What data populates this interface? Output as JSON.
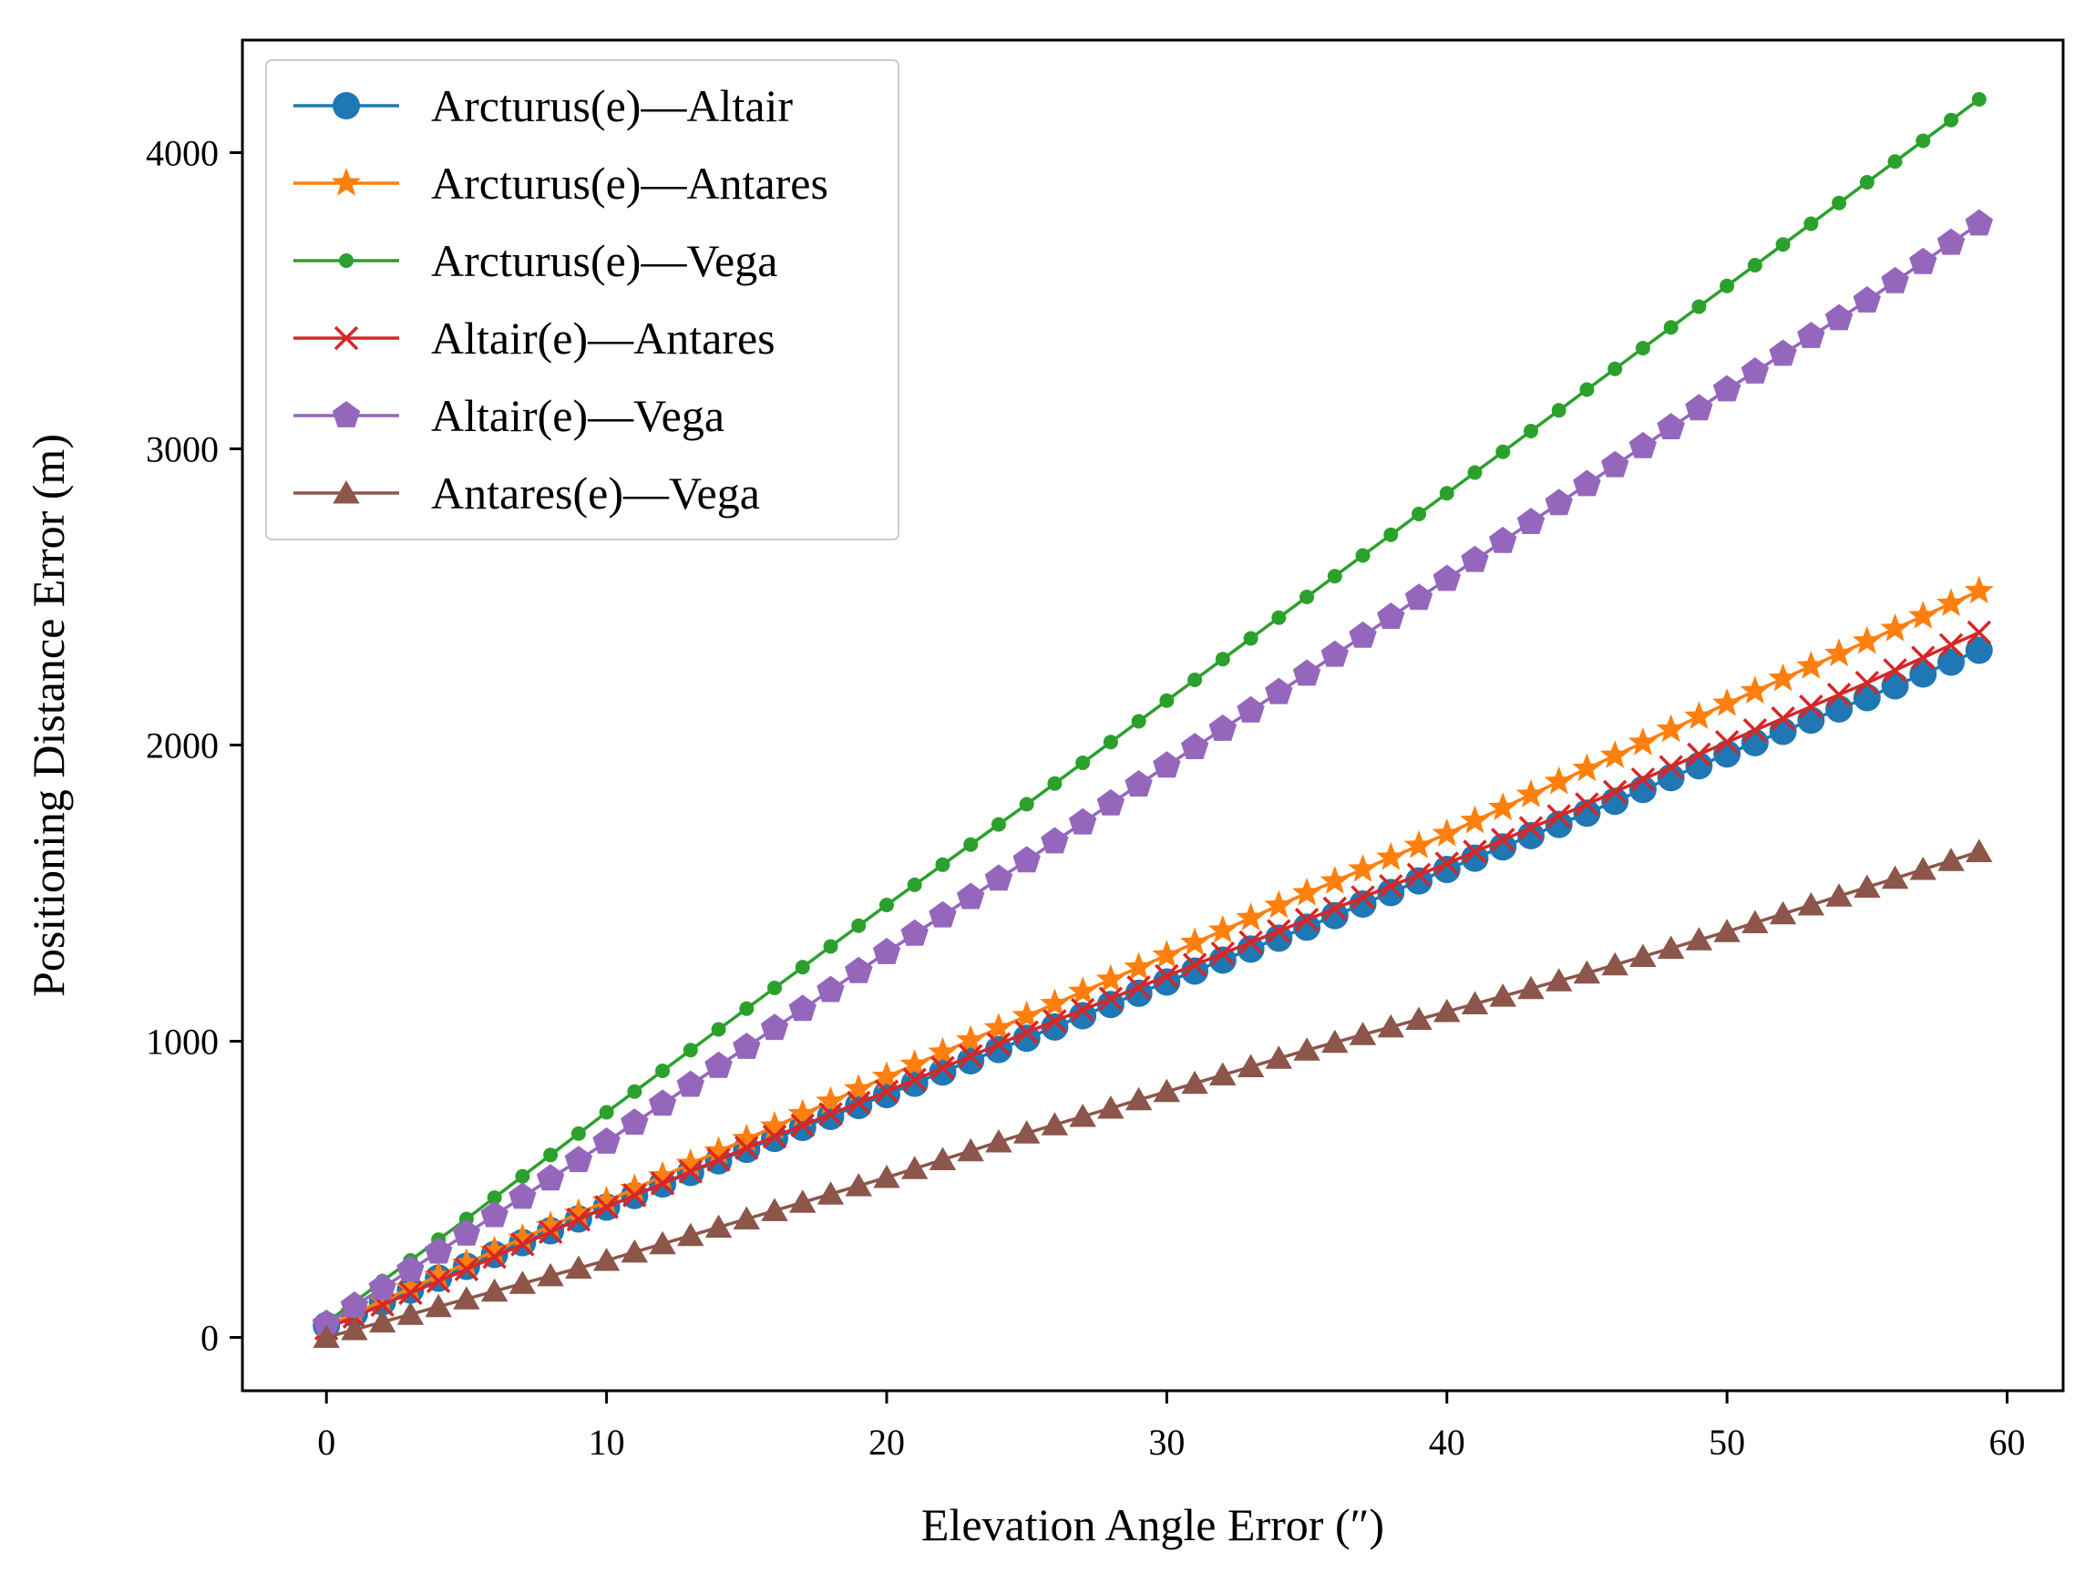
{
  "chart_data": {
    "type": "line",
    "title": "",
    "xlabel": "Elevation Angle Error (″)",
    "ylabel": "Positioning Distance Error (m)",
    "xlim": [
      -3,
      62
    ],
    "ylim": [
      -180,
      4380
    ],
    "xticks": [
      0,
      10,
      20,
      30,
      40,
      50,
      60
    ],
    "yticks": [
      0,
      1000,
      2000,
      3000,
      4000
    ],
    "xtick_labels": [
      "0",
      "10",
      "20",
      "30",
      "40",
      "50",
      "60"
    ],
    "ytick_labels": [
      "0",
      "1000",
      "2000",
      "3000",
      "4000"
    ],
    "grid": false,
    "legend_position": "upper-left",
    "x_range": {
      "start": 0,
      "end": 59,
      "step": 1
    },
    "series": [
      {
        "name": "Arcturus(e)—Altair",
        "color": "#1f77b4",
        "marker": "circle",
        "x": [
          0,
          5,
          10,
          15,
          20,
          25,
          30,
          35,
          40,
          45,
          50,
          55,
          59
        ],
        "y": [
          40,
          240,
          440,
          635,
          820,
          1010,
          1200,
          1385,
          1580,
          1770,
          1970,
          2160,
          2320
        ]
      },
      {
        "name": "Arcturus(e)—Antares",
        "color": "#ff7f0e",
        "marker": "star",
        "x": [
          0,
          5,
          10,
          15,
          20,
          25,
          30,
          35,
          40,
          45,
          50,
          55,
          59
        ],
        "y": [
          40,
          250,
          460,
          670,
          880,
          1085,
          1290,
          1500,
          1700,
          1920,
          2140,
          2350,
          2520
        ]
      },
      {
        "name": "Arcturus(e)—Vega",
        "color": "#2ca02c",
        "marker": "dot",
        "x": [
          0,
          5,
          10,
          15,
          20,
          25,
          30,
          35,
          40,
          45,
          50,
          55,
          59
        ],
        "y": [
          50,
          400,
          760,
          1110,
          1460,
          1800,
          2150,
          2500,
          2850,
          3200,
          3550,
          3900,
          4180
        ]
      },
      {
        "name": "Altair(e)—Antares",
        "color": "#d62728",
        "marker": "x",
        "x": [
          0,
          5,
          10,
          15,
          20,
          25,
          30,
          35,
          40,
          45,
          50,
          55,
          59
        ],
        "y": [
          30,
          230,
          440,
          640,
          830,
          1030,
          1220,
          1410,
          1600,
          1800,
          2010,
          2210,
          2380
        ]
      },
      {
        "name": "Altair(e)—Vega",
        "color": "#9467bd",
        "marker": "pentagon",
        "x": [
          0,
          5,
          10,
          15,
          20,
          25,
          30,
          35,
          40,
          45,
          50,
          55,
          59
        ],
        "y": [
          45,
          350,
          660,
          980,
          1300,
          1610,
          1930,
          2240,
          2560,
          2880,
          3200,
          3500,
          3760
        ]
      },
      {
        "name": "Antares(e)—Vega",
        "color": "#8c564b",
        "marker": "triangle",
        "x": [
          0,
          5,
          10,
          15,
          20,
          25,
          30,
          35,
          40,
          45,
          50,
          55,
          59
        ],
        "y": [
          0,
          130,
          260,
          400,
          540,
          690,
          830,
          970,
          1100,
          1230,
          1370,
          1520,
          1640
        ]
      }
    ]
  }
}
